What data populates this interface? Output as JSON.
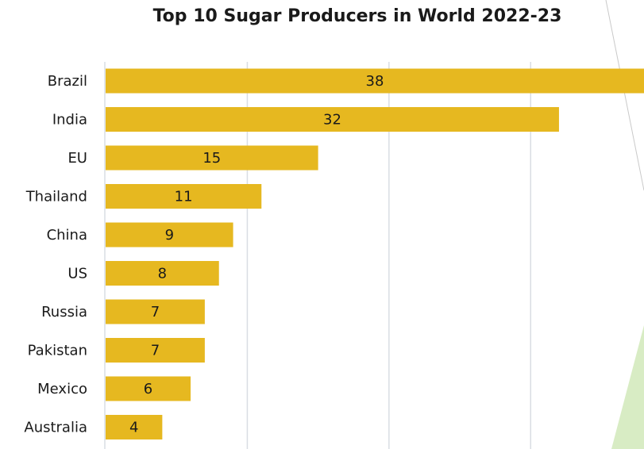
{
  "chart_data": {
    "type": "bar",
    "orientation": "horizontal",
    "title": "Top 10 Sugar Producers in World 2022-23",
    "categories": [
      "Brazil",
      "India",
      "EU",
      "Thailand",
      "China",
      "US",
      "Russia",
      "Pakistan",
      "Mexico",
      "Australia"
    ],
    "values": [
      38,
      32,
      15,
      11,
      9,
      8,
      7,
      7,
      6,
      4
    ],
    "xlim": [
      0,
      38
    ],
    "grid": true,
    "bar_color": "#E6B820",
    "gridline_color": "#d9dde3"
  },
  "decoration": {
    "accent_color": "#d8ecc4",
    "stripe_color": "#c9c9c9"
  }
}
